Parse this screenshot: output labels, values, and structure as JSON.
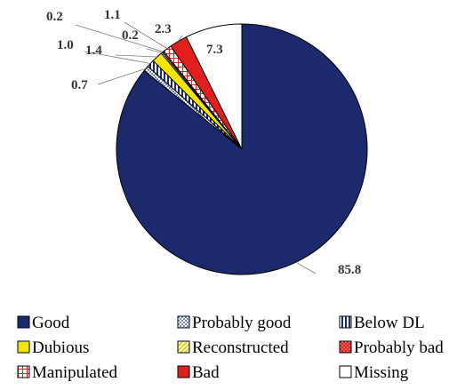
{
  "chart_data": {
    "type": "pie",
    "start": "12 o'clock",
    "direction": "clockwise",
    "legend_position": "bottom",
    "slices": [
      {
        "name": "Good",
        "value": 85.8,
        "color": "#1a2a6c",
        "pattern": "solid"
      },
      {
        "name": "Probably good",
        "value": 0.7,
        "color": "#a9bce0",
        "pattern": "checker"
      },
      {
        "name": "Below DL",
        "value": 1.0,
        "color": "#1a2a6c",
        "pattern": "vertical-stripes"
      },
      {
        "name": "Dubious",
        "value": 1.4,
        "color": "#f2e600",
        "pattern": "solid"
      },
      {
        "name": "Reconstructed",
        "value": 0.2,
        "color": "#f5ec8a",
        "pattern": "diagonal"
      },
      {
        "name": "Probably bad",
        "value": 0.2,
        "color": "#e0201e",
        "pattern": "dots"
      },
      {
        "name": "Manipulated",
        "value": 1.1,
        "color": "#e0201e",
        "pattern": "grid"
      },
      {
        "name": "Bad",
        "value": 2.3,
        "color": "#e0201e",
        "pattern": "solid"
      },
      {
        "name": "Missing",
        "value": 7.3,
        "color": "#ffffff",
        "pattern": "solid"
      }
    ],
    "data_labels": [
      "85.8",
      "0.7",
      "1.0",
      "1.4",
      "0.2",
      "0.2",
      "1.1",
      "2.3",
      "7.3"
    ],
    "legend_order": [
      "Good",
      "Probably good",
      "Below DL",
      "Dubious",
      "Reconstructed",
      "Probably bad",
      "Manipulated",
      "Bad",
      "Missing"
    ]
  }
}
